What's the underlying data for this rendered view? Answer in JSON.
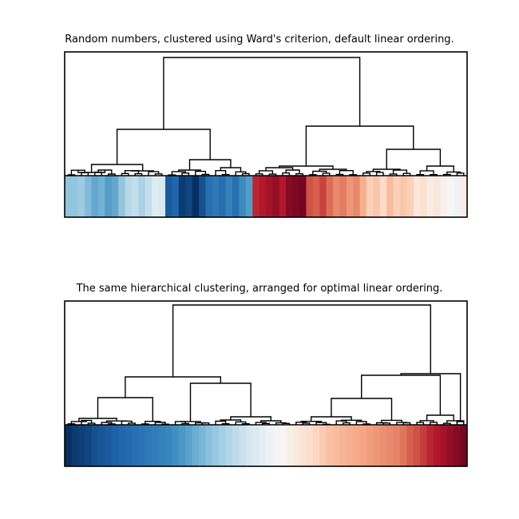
{
  "chart_data": [
    {
      "type": "heatmap",
      "subtype": "dendrogram-with-color-strip",
      "title": "Random numbers, clustered using Ward's criterion, default linear ordering.",
      "xlabel": "",
      "ylabel": "",
      "grid": false,
      "colormap": "RdBu_r",
      "value_range": [
        0,
        1
      ],
      "n_leaves": 60,
      "leaf_values": [
        0.3,
        0.3,
        0.32,
        0.28,
        0.24,
        0.26,
        0.22,
        0.24,
        0.3,
        0.36,
        0.38,
        0.34,
        0.38,
        0.44,
        0.42,
        0.08,
        0.1,
        0.02,
        0.04,
        0.0,
        0.06,
        0.12,
        0.14,
        0.12,
        0.16,
        0.12,
        0.18,
        0.22,
        0.88,
        0.9,
        0.92,
        0.94,
        0.9,
        0.96,
        0.97,
        0.98,
        0.82,
        0.8,
        0.84,
        0.78,
        0.74,
        0.76,
        0.72,
        0.74,
        0.68,
        0.62,
        0.64,
        0.6,
        0.66,
        0.62,
        0.64,
        0.62,
        0.56,
        0.58,
        0.54,
        0.56,
        0.52,
        0.5,
        0.48,
        0.54
      ],
      "dendrogram": {
        "root": [
          480,
          0
        ],
        "level1": [
          [
            325,
            0
          ],
          [
            155,
            0
          ]
        ],
        "level2": [
          [
            200,
            0
          ],
          [
            125,
            0
          ],
          [
            75,
            0
          ],
          [
            80,
            0
          ]
        ]
      }
    },
    {
      "type": "heatmap",
      "subtype": "dendrogram-with-color-strip",
      "title": "The same hierarchical clustering, arranged for optimal linear ordering.",
      "xlabel": "",
      "ylabel": "",
      "grid": false,
      "colormap": "RdBu_r",
      "value_range": [
        0,
        1
      ],
      "n_leaves": 60,
      "leaf_values": [
        0.0,
        0.02,
        0.03,
        0.04,
        0.06,
        0.07,
        0.08,
        0.09,
        0.1,
        0.11,
        0.12,
        0.13,
        0.14,
        0.15,
        0.16,
        0.17,
        0.19,
        0.21,
        0.23,
        0.25,
        0.27,
        0.29,
        0.31,
        0.33,
        0.35,
        0.37,
        0.39,
        0.41,
        0.43,
        0.45,
        0.47,
        0.49,
        0.51,
        0.53,
        0.55,
        0.57,
        0.59,
        0.61,
        0.63,
        0.65,
        0.66,
        0.67,
        0.68,
        0.69,
        0.7,
        0.71,
        0.72,
        0.73,
        0.74,
        0.75,
        0.77,
        0.8,
        0.82,
        0.85,
        0.88,
        0.9,
        0.92,
        0.94,
        0.96,
        0.98
      ]
    }
  ]
}
